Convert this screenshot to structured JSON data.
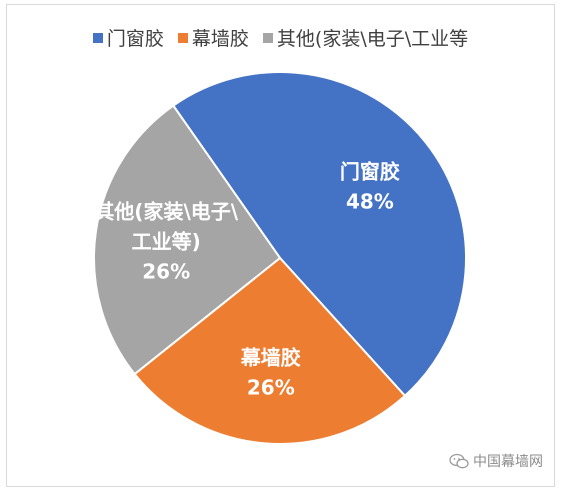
{
  "chart_data": {
    "type": "pie",
    "title": "",
    "categories": [
      "门窗胶",
      "幕墙胶",
      "其他(家装\\电子\\工业等"
    ],
    "values": [
      48,
      26,
      26
    ],
    "value_suffix": "%",
    "colors": [
      "#4472C4",
      "#ED7D31",
      "#A5A5A5"
    ],
    "slice_labels": [
      [
        "门窗胶"
      ],
      [
        "幕墙胶"
      ],
      [
        "其他(家装\\电子\\",
        "工业等)"
      ]
    ],
    "legend_position": "top"
  },
  "watermark": {
    "text": "中国幕墙网",
    "icon": "wechat-icon"
  }
}
